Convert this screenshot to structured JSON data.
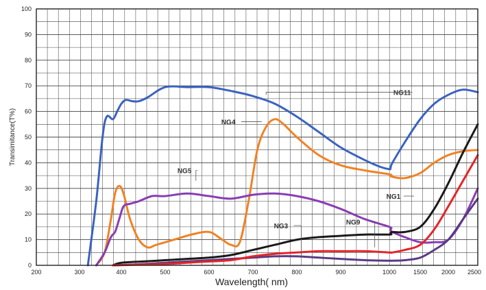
{
  "chart_data": {
    "type": "line",
    "title": "",
    "xlabel": "Wavelength( nm)",
    "ylabel": "Transimitance(T%)",
    "ylim": [
      0,
      100
    ],
    "y_ticks": [
      "0",
      "10",
      "20",
      "30",
      "40",
      "50",
      "60",
      "70",
      "80",
      "90",
      "100"
    ],
    "x_ticks": [
      "200",
      "300",
      "400",
      "500",
      "600",
      "700",
      "800",
      "900",
      "1000",
      "1500",
      "2000",
      "2500"
    ],
    "x_scale": "broken: linear 200–1000, then 500-unit steps to 2500",
    "grid": true,
    "legend": "none (series labelled by callouts on the plot)",
    "series": [
      {
        "name": "NG11",
        "color": "#3a62c0",
        "x": [
          320,
          340,
          355,
          365,
          380,
          390,
          400,
          410,
          425,
          440,
          460,
          500,
          550,
          600,
          650,
          700,
          750,
          800,
          850,
          900,
          950,
          980,
          1000,
          1020,
          1050,
          1250,
          1500,
          1750,
          2000,
          2250,
          2500
        ],
        "y": [
          0,
          25,
          50,
          58,
          57,
          60,
          63,
          64.5,
          64,
          64,
          65.5,
          69.5,
          69.5,
          69.5,
          68,
          66,
          63,
          58,
          52,
          46,
          41,
          38.5,
          37.5,
          38,
          40,
          48,
          57,
          63,
          66.5,
          68.5,
          67.5
        ]
      },
      {
        "name": "NG4",
        "color": "#f08224",
        "x": [
          340,
          360,
          375,
          385,
          395,
          405,
          420,
          440,
          460,
          480,
          520,
          560,
          600,
          630,
          650,
          670,
          690,
          710,
          730,
          750,
          770,
          800,
          850,
          900,
          950,
          1000,
          1020,
          1050,
          1250,
          1500,
          1750,
          2000,
          2250,
          2500
        ],
        "y": [
          0,
          5,
          18,
          28,
          31,
          28,
          18,
          10,
          7,
          8,
          10,
          12,
          13,
          10,
          8,
          9,
          25,
          45,
          54,
          57,
          55,
          50,
          43,
          39,
          37,
          35.5,
          35,
          34.5,
          34,
          36,
          40,
          43,
          44.5,
          45
        ]
      },
      {
        "name": "NG5",
        "color": "#8a3cb4",
        "x": [
          340,
          360,
          375,
          385,
          395,
          405,
          420,
          440,
          470,
          500,
          550,
          600,
          650,
          700,
          750,
          800,
          850,
          900,
          950,
          1000,
          1020,
          1050,
          1250,
          1500,
          1750,
          2000,
          2250,
          2500
        ],
        "y": [
          0,
          5,
          11,
          13,
          18,
          23,
          24,
          25,
          27,
          27,
          28,
          27,
          26,
          27.5,
          28,
          27,
          25,
          22,
          18,
          15,
          14,
          13,
          11,
          9,
          9,
          10,
          18,
          30
        ]
      },
      {
        "name": "NG1",
        "color": "#1a1a1a",
        "x": [
          380,
          400,
          450,
          500,
          550,
          600,
          650,
          700,
          750,
          800,
          850,
          900,
          950,
          1000,
          1020,
          1050,
          1250,
          1500,
          1750,
          2000,
          2250,
          2500
        ],
        "y": [
          0,
          1,
          1.5,
          2,
          2.5,
          3,
          4,
          6,
          8,
          10,
          11,
          11.5,
          12,
          12,
          12.5,
          13,
          13,
          15,
          22,
          32,
          44,
          55
        ]
      },
      {
        "name": "NG3",
        "color": "#5a3a84",
        "x": [
          380,
          450,
          500,
          550,
          600,
          650,
          700,
          750,
          800,
          850,
          900,
          950,
          1000,
          1020,
          1050,
          1250,
          1500,
          1750,
          2000,
          2250,
          2500
        ],
        "y": [
          0,
          0.5,
          1,
          1.5,
          2,
          2.5,
          3,
          3.5,
          3.5,
          3,
          2.5,
          2,
          1.8,
          1.8,
          1.8,
          2,
          3,
          6,
          10,
          18,
          26
        ]
      },
      {
        "name": "NG9",
        "color": "#e52428",
        "x": [
          380,
          450,
          500,
          550,
          600,
          650,
          700,
          750,
          800,
          850,
          900,
          950,
          1000,
          1020,
          1050,
          1250,
          1500,
          1750,
          2000,
          2250,
          2500
        ],
        "y": [
          0,
          0.3,
          0.5,
          1,
          1.5,
          2,
          3.5,
          4.5,
          5,
          5.5,
          5.5,
          5.5,
          5,
          5,
          5,
          6,
          8,
          14,
          23,
          33,
          43
        ]
      }
    ],
    "annotations": [
      {
        "text": "NG11",
        "series": "NG11"
      },
      {
        "text": "NG4",
        "series": "NG4"
      },
      {
        "text": "NG5",
        "series": "NG5"
      },
      {
        "text": "NG1",
        "series": "NG1"
      },
      {
        "text": "NG3",
        "series": "NG3"
      },
      {
        "text": "NG9",
        "series": "NG9"
      }
    ]
  }
}
